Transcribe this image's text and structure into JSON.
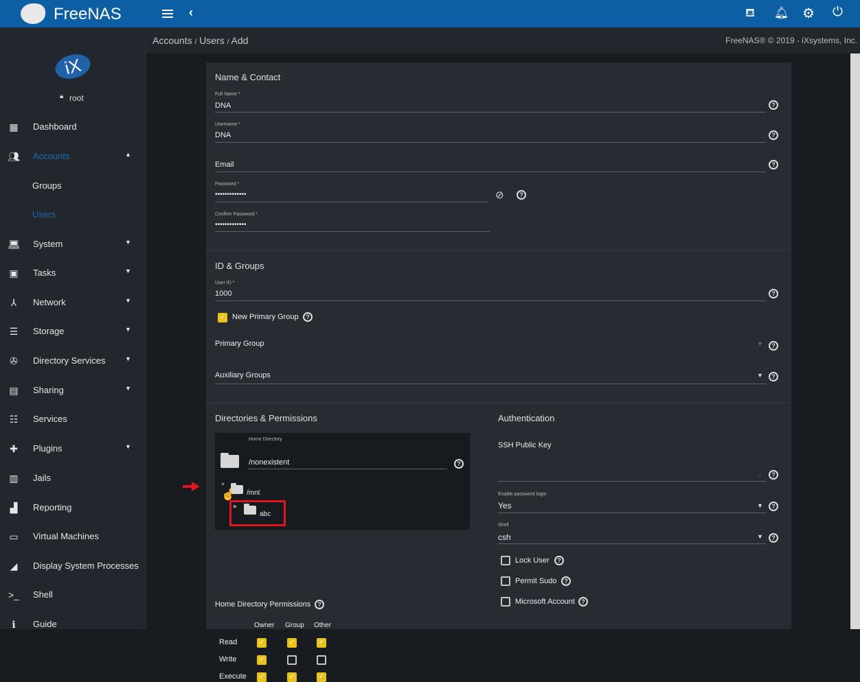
{
  "topbar": {
    "brand": "FreeNAS",
    "menu_icon": "hamburger-icon",
    "collapse_icon": "chevron-left-icon",
    "actions": [
      "theme-icon",
      "bell-icon",
      "gear-icon",
      "power-icon"
    ],
    "color": "#0d5fa3"
  },
  "sidebar": {
    "logo": "iX",
    "user": "root",
    "items": [
      {
        "label": "Dashboard",
        "icon": "dashboard-icon"
      },
      {
        "label": "Accounts",
        "icon": "accounts-icon",
        "active": true,
        "expanded": true
      },
      {
        "label": "Groups",
        "sub": true
      },
      {
        "label": "Users",
        "sub": true,
        "active": true
      },
      {
        "label": "System",
        "icon": "laptop-icon"
      },
      {
        "label": "Tasks",
        "icon": "calendar-icon"
      },
      {
        "label": "Network",
        "icon": "network-icon"
      },
      {
        "label": "Storage",
        "icon": "storage-icon"
      },
      {
        "label": "Directory Services",
        "icon": "directory-icon"
      },
      {
        "label": "Sharing",
        "icon": "sharing-icon"
      },
      {
        "label": "Services",
        "icon": "sliders-icon"
      },
      {
        "label": "Plugins",
        "icon": "puzzle-icon"
      },
      {
        "label": "Jails",
        "icon": "jail-icon"
      },
      {
        "label": "Reporting",
        "icon": "chart-icon"
      },
      {
        "label": "Virtual Machines",
        "icon": "monitor-icon"
      },
      {
        "label": "Display System Processes",
        "icon": "processes-icon"
      },
      {
        "label": "Shell",
        "icon": "terminal-icon"
      },
      {
        "label": "Guide",
        "icon": "info-icon"
      }
    ],
    "active_color": "#1f6bb3"
  },
  "breadcrumb": [
    "Accounts",
    "Users",
    "Add"
  ],
  "copyright": "FreeNAS® © 2019 - iXsystems, Inc.",
  "name_contact": {
    "title": "Name & Contact",
    "full_name": {
      "label": "Full Name *",
      "value": "DNA"
    },
    "username": {
      "label": "Username *",
      "value": "DNA"
    },
    "email": {
      "label": "Email",
      "value": ""
    },
    "password": {
      "label": "Password *",
      "value": "•••••••••••••"
    },
    "confirm_password": {
      "label": "Confirm Password *",
      "value": "•••••••••••••"
    }
  },
  "id_groups": {
    "title": "ID & Groups",
    "user_id": {
      "label": "User ID *",
      "value": "1000"
    },
    "new_primary_group": {
      "label": "New Primary Group",
      "checked": true
    },
    "primary_group": {
      "label": "Primary Group"
    },
    "auxiliary_groups": {
      "label": "Auxiliary Groups"
    }
  },
  "directories": {
    "title": "Directories & Permissions",
    "home_directory": {
      "label": "Home Directory",
      "value": "/nonexistent"
    },
    "tree": {
      "root": "/mnt",
      "child": "abc"
    },
    "permissions": {
      "title": "Home Directory Permissions",
      "columns": [
        "Owner",
        "Group",
        "Other"
      ],
      "rows": [
        {
          "label": "Read",
          "values": [
            true,
            true,
            true
          ]
        },
        {
          "label": "Write",
          "values": [
            true,
            false,
            false
          ]
        },
        {
          "label": "Execute",
          "values": [
            true,
            true,
            true
          ]
        }
      ]
    }
  },
  "authentication": {
    "title": "Authentication",
    "ssh_key": {
      "label": "SSH Public Key"
    },
    "password_login": {
      "label": "Enable password login",
      "value": "Yes"
    },
    "shell": {
      "label": "Shell",
      "value": "csh"
    },
    "lock_user": {
      "label": "Lock User",
      "checked": false
    },
    "permit_sudo": {
      "label": "Permit Sudo",
      "checked": false
    },
    "microsoft_account": {
      "label": "Microsoft Account",
      "checked": false
    }
  },
  "checkbox_color": "#e9c21a"
}
